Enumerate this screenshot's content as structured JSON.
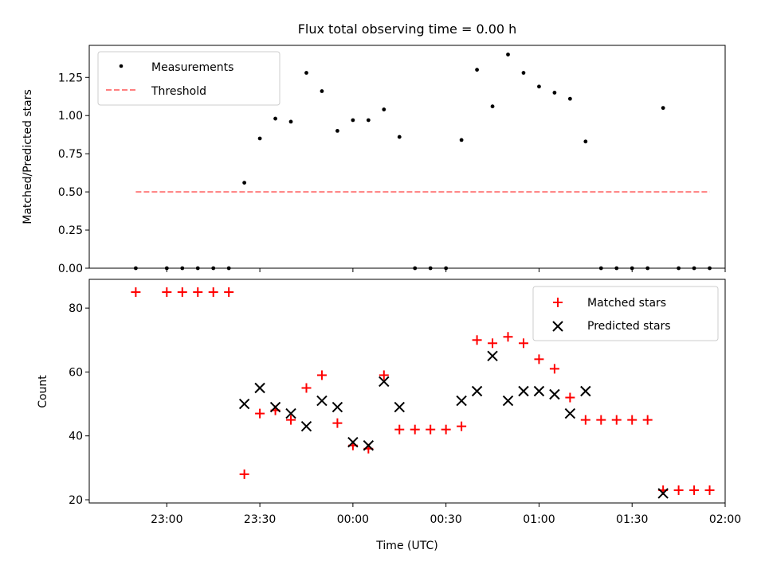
{
  "chart_data": [
    {
      "type": "scatter",
      "title": "Flux total observing time = 0.00 h",
      "xlabel": "",
      "ylabel": "Matched/Predicted stars",
      "ylim": [
        0,
        1.46
      ],
      "yticks": [
        "0.00",
        "0.25",
        "0.50",
        "0.75",
        "1.00",
        "1.25"
      ],
      "yticks_values": [
        0,
        0.25,
        0.5,
        0.75,
        1.0,
        1.25
      ],
      "legend": "top-left",
      "series": [
        {
          "name": "Measurements",
          "marker": "dot",
          "color": "#000000",
          "x": [
            "22:50",
            "23:00",
            "23:05",
            "23:10",
            "23:15",
            "23:20",
            "23:25",
            "23:30",
            "23:35",
            "23:40",
            "23:45",
            "23:50",
            "23:55",
            "00:00",
            "00:05",
            "00:10",
            "00:15",
            "00:20",
            "00:25",
            "00:30",
            "00:35",
            "00:40",
            "00:45",
            "00:50",
            "00:55",
            "01:00",
            "01:05",
            "01:10",
            "01:15",
            "01:20",
            "01:25",
            "01:30",
            "01:35",
            "01:40",
            "01:45",
            "01:50",
            "01:55"
          ],
          "y": [
            0,
            0,
            0,
            0,
            0,
            0,
            0.56,
            0.85,
            0.98,
            0.96,
            1.28,
            1.16,
            0.9,
            0.97,
            0.97,
            1.04,
            0.86,
            0,
            0,
            0,
            0.84,
            1.3,
            1.06,
            1.4,
            1.28,
            1.19,
            1.15,
            1.11,
            0.83,
            0,
            0,
            0,
            0,
            1.05,
            0,
            0,
            0
          ]
        },
        {
          "name": "Threshold",
          "marker": "dashed-line",
          "color": "#ff7f7f",
          "x": [
            "22:50",
            "01:55"
          ],
          "y": [
            0.5,
            0.5
          ]
        }
      ]
    },
    {
      "type": "scatter",
      "xlabel": "Time (UTC)",
      "ylabel": "Count",
      "ylim": [
        19,
        89
      ],
      "yticks": [
        "20",
        "40",
        "60",
        "80"
      ],
      "yticks_values": [
        20,
        40,
        60,
        80
      ],
      "xlim": [
        "22:35",
        "02:00"
      ],
      "xticks": [
        "23:00",
        "23:30",
        "00:00",
        "00:30",
        "01:00",
        "01:30",
        "02:00"
      ],
      "legend": "top-right",
      "series": [
        {
          "name": "Matched stars",
          "marker": "plus",
          "color": "#ff0000",
          "x": [
            "22:50",
            "23:00",
            "23:05",
            "23:10",
            "23:15",
            "23:20",
            "23:25",
            "23:30",
            "23:35",
            "23:40",
            "23:45",
            "23:50",
            "23:55",
            "00:00",
            "00:05",
            "00:10",
            "00:15",
            "00:20",
            "00:25",
            "00:30",
            "00:35",
            "00:40",
            "00:45",
            "00:50",
            "00:55",
            "01:00",
            "01:05",
            "01:10",
            "01:15",
            "01:20",
            "01:25",
            "01:30",
            "01:35",
            "01:40",
            "01:45",
            "01:50",
            "01:55"
          ],
          "y": [
            85,
            85,
            85,
            85,
            85,
            85,
            28,
            47,
            48,
            45,
            55,
            59,
            44,
            37,
            36,
            59,
            42,
            42,
            42,
            42,
            43,
            70,
            69,
            71,
            69,
            64,
            61,
            52,
            45,
            45,
            45,
            45,
            45,
            23,
            23,
            23,
            23
          ]
        },
        {
          "name": "Predicted stars",
          "marker": "x",
          "color": "#000000",
          "x": [
            "23:25",
            "23:30",
            "23:35",
            "23:40",
            "23:45",
            "23:50",
            "23:55",
            "00:00",
            "00:05",
            "00:10",
            "00:15",
            "00:35",
            "00:40",
            "00:45",
            "00:50",
            "00:55",
            "01:00",
            "01:05",
            "01:10",
            "01:15",
            "01:40"
          ],
          "y": [
            50,
            55,
            49,
            47,
            43,
            51,
            49,
            38,
            37,
            57,
            49,
            51,
            54,
            65,
            51,
            54,
            54,
            53,
            47,
            54,
            22
          ]
        }
      ]
    }
  ]
}
